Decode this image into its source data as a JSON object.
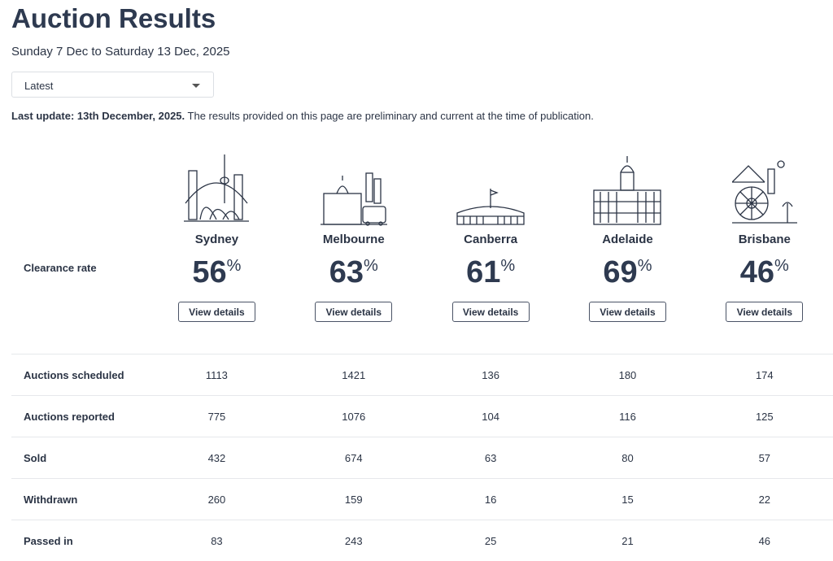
{
  "title": "Auction Results",
  "date_range": "Sunday 7 Dec to Saturday 13 Dec, 2025",
  "period_select": {
    "value": "Latest"
  },
  "last_update": {
    "bold": "Last update: 13th December, 2025.",
    "text": " The results provided on this page are preliminary and current at the time of publication."
  },
  "clearance_label": "Clearance rate",
  "view_details_label": "View details",
  "percent_sign": "%",
  "cities": [
    {
      "name": "Sydney",
      "rate": "56",
      "icon": "sydney-skyline-icon"
    },
    {
      "name": "Melbourne",
      "rate": "63",
      "icon": "melbourne-skyline-icon"
    },
    {
      "name": "Canberra",
      "rate": "61",
      "icon": "canberra-parliament-icon"
    },
    {
      "name": "Adelaide",
      "rate": "69",
      "icon": "adelaide-building-icon"
    },
    {
      "name": "Brisbane",
      "rate": "46",
      "icon": "brisbane-skyline-icon"
    }
  ],
  "rows": [
    {
      "label": "Auctions scheduled",
      "values": [
        "1113",
        "1421",
        "136",
        "180",
        "174"
      ]
    },
    {
      "label": "Auctions reported",
      "values": [
        "775",
        "1076",
        "104",
        "116",
        "125"
      ]
    },
    {
      "label": "Sold",
      "values": [
        "432",
        "674",
        "63",
        "80",
        "57"
      ]
    },
    {
      "label": "Withdrawn",
      "values": [
        "260",
        "159",
        "16",
        "15",
        "22"
      ]
    },
    {
      "label": "Passed in",
      "values": [
        "83",
        "243",
        "25",
        "21",
        "46"
      ]
    }
  ]
}
